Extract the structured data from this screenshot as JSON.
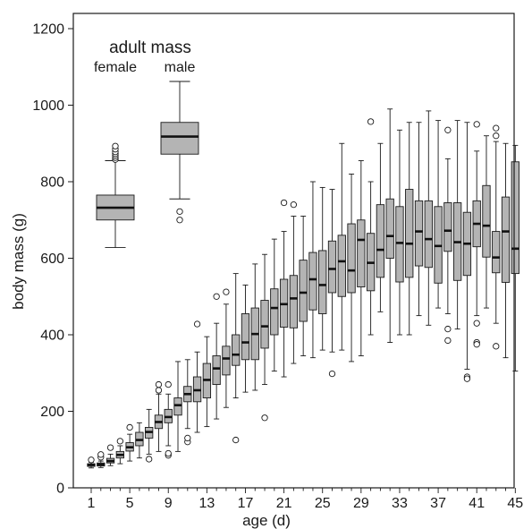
{
  "chart_data": {
    "type": "boxplot",
    "xlabel": "age (d)",
    "ylabel": "body mass (g)",
    "ylim": [
      0,
      1200
    ],
    "y_ticks": [
      0,
      200,
      400,
      600,
      800,
      1000,
      1200
    ],
    "x_ticks": [
      1,
      5,
      9,
      13,
      17,
      21,
      25,
      29,
      33,
      37,
      41,
      45
    ],
    "grid": false,
    "colors": {
      "box_fill": "#b4b4b4",
      "stroke": "#1a1a1a",
      "median": "#111111"
    },
    "series": [
      {
        "x": 1,
        "min": 52,
        "q1": 56,
        "median": 60,
        "q3": 63,
        "max": 67,
        "outliers": [
          73
        ]
      },
      {
        "x": 2,
        "min": 53,
        "q1": 57,
        "median": 61,
        "q3": 65,
        "max": 70,
        "outliers": [
          80,
          87
        ]
      },
      {
        "x": 3,
        "min": 58,
        "q1": 65,
        "median": 70,
        "q3": 77,
        "max": 88,
        "outliers": [
          105
        ]
      },
      {
        "x": 4,
        "min": 63,
        "q1": 78,
        "median": 86,
        "q3": 95,
        "max": 110,
        "outliers": [
          122
        ]
      },
      {
        "x": 5,
        "min": 70,
        "q1": 96,
        "median": 106,
        "q3": 118,
        "max": 140,
        "outliers": [
          158
        ]
      },
      {
        "x": 6,
        "min": 78,
        "q1": 110,
        "median": 125,
        "q3": 145,
        "max": 170,
        "outliers": []
      },
      {
        "x": 7,
        "min": 88,
        "q1": 130,
        "median": 146,
        "q3": 158,
        "max": 205,
        "outliers": [
          75
        ]
      },
      {
        "x": 8,
        "min": 95,
        "q1": 155,
        "median": 172,
        "q3": 190,
        "max": 245,
        "outliers": [
          255,
          270
        ]
      },
      {
        "x": 9,
        "min": 110,
        "q1": 170,
        "median": 185,
        "q3": 205,
        "max": 245,
        "outliers": [
          85,
          90,
          270
        ]
      },
      {
        "x": 10,
        "min": 95,
        "q1": 190,
        "median": 216,
        "q3": 235,
        "max": 330,
        "outliers": []
      },
      {
        "x": 11,
        "min": 155,
        "q1": 225,
        "median": 245,
        "q3": 265,
        "max": 335,
        "outliers": [
          120,
          130
        ]
      },
      {
        "x": 12,
        "min": 145,
        "q1": 225,
        "median": 255,
        "q3": 290,
        "max": 355,
        "outliers": [
          428
        ]
      },
      {
        "x": 13,
        "min": 160,
        "q1": 235,
        "median": 282,
        "q3": 325,
        "max": 395,
        "outliers": []
      },
      {
        "x": 14,
        "min": 180,
        "q1": 270,
        "median": 312,
        "q3": 345,
        "max": 430,
        "outliers": [
          500
        ]
      },
      {
        "x": 15,
        "min": 210,
        "q1": 295,
        "median": 338,
        "q3": 370,
        "max": 480,
        "outliers": [
          512
        ]
      },
      {
        "x": 16,
        "min": 235,
        "q1": 320,
        "median": 348,
        "q3": 400,
        "max": 560,
        "outliers": [
          125
        ]
      },
      {
        "x": 17,
        "min": 250,
        "q1": 335,
        "median": 380,
        "q3": 455,
        "max": 530,
        "outliers": []
      },
      {
        "x": 18,
        "min": 255,
        "q1": 335,
        "median": 402,
        "q3": 470,
        "max": 585,
        "outliers": []
      },
      {
        "x": 19,
        "min": 270,
        "q1": 365,
        "median": 422,
        "q3": 490,
        "max": 610,
        "outliers": [
          183
        ]
      },
      {
        "x": 20,
        "min": 305,
        "q1": 400,
        "median": 470,
        "q3": 520,
        "max": 650,
        "outliers": []
      },
      {
        "x": 21,
        "min": 290,
        "q1": 420,
        "median": 480,
        "q3": 545,
        "max": 670,
        "outliers": [
          745
        ]
      },
      {
        "x": 22,
        "min": 325,
        "q1": 418,
        "median": 495,
        "q3": 555,
        "max": 710,
        "outliers": [
          740
        ]
      },
      {
        "x": 23,
        "min": 345,
        "q1": 435,
        "median": 510,
        "q3": 595,
        "max": 710,
        "outliers": []
      },
      {
        "x": 24,
        "min": 340,
        "q1": 465,
        "median": 545,
        "q3": 615,
        "max": 800,
        "outliers": []
      },
      {
        "x": 25,
        "min": 360,
        "q1": 455,
        "median": 530,
        "q3": 620,
        "max": 785,
        "outliers": []
      },
      {
        "x": 26,
        "min": 355,
        "q1": 510,
        "median": 572,
        "q3": 645,
        "max": 780,
        "outliers": [
          298
        ]
      },
      {
        "x": 27,
        "min": 360,
        "q1": 500,
        "median": 592,
        "q3": 660,
        "max": 900,
        "outliers": []
      },
      {
        "x": 28,
        "min": 330,
        "q1": 510,
        "median": 568,
        "q3": 690,
        "max": 820,
        "outliers": []
      },
      {
        "x": 29,
        "min": 345,
        "q1": 525,
        "median": 648,
        "q3": 700,
        "max": 855,
        "outliers": []
      },
      {
        "x": 30,
        "min": 400,
        "q1": 515,
        "median": 588,
        "q3": 665,
        "max": 800,
        "outliers": [
          957
        ]
      },
      {
        "x": 31,
        "min": 460,
        "q1": 550,
        "median": 622,
        "q3": 740,
        "max": 900,
        "outliers": []
      },
      {
        "x": 32,
        "min": 380,
        "q1": 600,
        "median": 658,
        "q3": 755,
        "max": 990,
        "outliers": []
      },
      {
        "x": 33,
        "min": 400,
        "q1": 538,
        "median": 640,
        "q3": 735,
        "max": 935,
        "outliers": []
      },
      {
        "x": 34,
        "min": 400,
        "q1": 550,
        "median": 638,
        "q3": 780,
        "max": 955,
        "outliers": []
      },
      {
        "x": 35,
        "min": 450,
        "q1": 580,
        "median": 670,
        "q3": 750,
        "max": 955,
        "outliers": []
      },
      {
        "x": 36,
        "min": 425,
        "q1": 576,
        "median": 650,
        "q3": 750,
        "max": 985,
        "outliers": []
      },
      {
        "x": 37,
        "min": 470,
        "q1": 535,
        "median": 632,
        "q3": 735,
        "max": 960,
        "outliers": []
      },
      {
        "x": 38,
        "min": 455,
        "q1": 618,
        "median": 672,
        "q3": 745,
        "max": 860,
        "outliers": [
          935,
          415,
          385
        ]
      },
      {
        "x": 39,
        "min": 415,
        "q1": 542,
        "median": 642,
        "q3": 745,
        "max": 960,
        "outliers": []
      },
      {
        "x": 40,
        "min": 310,
        "q1": 555,
        "median": 638,
        "q3": 720,
        "max": 955,
        "outliers": [
          290,
          285
        ]
      },
      {
        "x": 41,
        "min": 450,
        "q1": 630,
        "median": 690,
        "q3": 750,
        "max": 880,
        "outliers": [
          950,
          430,
          380,
          375
        ]
      },
      {
        "x": 42,
        "min": 470,
        "q1": 603,
        "median": 685,
        "q3": 790,
        "max": 920,
        "outliers": []
      },
      {
        "x": 43,
        "min": 430,
        "q1": 562,
        "median": 602,
        "q3": 670,
        "max": 905,
        "outliers": [
          940,
          920,
          370
        ]
      },
      {
        "x": 44,
        "min": 340,
        "q1": 537,
        "median": 670,
        "q3": 760,
        "max": 900,
        "outliers": []
      },
      {
        "x": 45,
        "min": 305,
        "q1": 560,
        "median": 625,
        "q3": 852,
        "max": 895,
        "outliers": []
      }
    ],
    "inset": {
      "title": "adult mass",
      "groups": [
        {
          "label": "female",
          "min": 628,
          "q1": 700,
          "median": 732,
          "q3": 765,
          "max": 855,
          "outliers": [
            858,
            863,
            868,
            873,
            878,
            885,
            893
          ]
        },
        {
          "label": "male",
          "min": 755,
          "q1": 872,
          "median": 918,
          "q3": 955,
          "max": 1062,
          "outliers": [
            722,
            700
          ]
        }
      ]
    }
  }
}
